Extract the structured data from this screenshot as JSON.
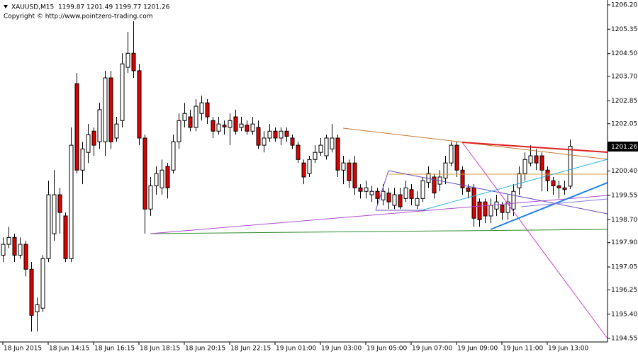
{
  "chart_data": {
    "type": "candlestick",
    "title": "XAUUSD,M15  1199.87 1201.49 1199.77 1201.26",
    "subtitle": "Copyright © http://www.pointzero-trading.com",
    "current_price": 1201.26,
    "up_color": "#ffffff",
    "down_color": "#e00000",
    "wick_color": "#000000",
    "categories": [
      "18 Jun 2015",
      null,
      null,
      null,
      null,
      null,
      null,
      null,
      "18 Jun 14:15",
      null,
      null,
      null,
      null,
      null,
      null,
      null,
      "18 Jun 16:15",
      null,
      null,
      null,
      null,
      null,
      null,
      null,
      "18 Jun 18:15",
      null,
      null,
      null,
      null,
      null,
      null,
      null,
      "18 Jun 20:15",
      null,
      null,
      null,
      null,
      null,
      null,
      null,
      "18 Jun 22:15",
      null,
      null,
      null,
      null,
      null,
      null,
      null,
      "19 Jun 01:00",
      null,
      null,
      null,
      null,
      null,
      null,
      null,
      "19 Jun 03:00",
      null,
      null,
      null,
      null,
      null,
      null,
      null,
      "19 Jun 05:00",
      null,
      null,
      null,
      null,
      null,
      null,
      null,
      "19 Jun 07:00",
      null,
      null,
      null,
      null,
      null,
      null,
      null,
      "19 Jun 09:00",
      null,
      null,
      null,
      null,
      null,
      null,
      null,
      "19 Jun 11:00",
      null,
      null,
      null,
      null,
      null,
      null,
      null,
      "19 Jun 13:00",
      null,
      null,
      null,
      null
    ],
    "open": [
      1197.46,
      1197.84,
      1198.08,
      1197.46,
      1197.84,
      1196.97,
      1195.48,
      1195.61,
      1197.34,
      1198.21,
      1199.57,
      1198.83,
      1197.34,
      1203.45,
      1200.43,
      1201.05,
      1201.79,
      1201.42,
      1201.42,
      1203.65,
      1201.55,
      1202.16,
      1204.02,
      1204.51,
      1203.9,
      1201.55,
      1199.07,
      1199.88,
      1199.81,
      1200.56,
      1200.43,
      1201.42,
      1202.16,
      1202.29,
      1201.92,
      1202.41,
      1202.78,
      1202.16,
      1201.79,
      1202.0,
      1201.92,
      1202.29,
      1201.92,
      1202.0,
      1201.79,
      1201.92,
      1201.3,
      1201.55,
      1201.79,
      1201.55,
      1201.79,
      1201.55,
      1201.3,
      1200.68,
      1200.31,
      1200.8,
      1201.05,
      1200.93,
      1201.17,
      1201.55,
      1200.43,
      1200.68,
      1200.68,
      1199.81,
      1199.69,
      1199.57,
      1199.69,
      1199.39,
      1199.63,
      1199.2,
      1199.57,
      1199.44,
      1199.75,
      1199.2,
      1199.44,
      1200.0,
      1200.19,
      1199.94,
      1200.15,
      1200.68,
      1201.3,
      1200.43,
      1199.81,
      1199.81,
      1199.32,
      1199.32,
      1198.83,
      1199.07,
      1199.2,
      1198.95,
      1199.07,
      1199.81,
      1200.31,
      1200.68,
      1200.93,
      1200.93,
      1200.43,
      1200.06,
      1199.88,
      1199.81,
      1199.87
    ],
    "high": [
      1198.08,
      1198.45,
      1198.21,
      1198.08,
      1197.96,
      1197.22,
      1195.98,
      1197.46,
      1200.06,
      1200.43,
      1199.81,
      1198.95,
      1201.92,
      1203.82,
      1201.42,
      1202.04,
      1201.92,
      1202.78,
      1203.9,
      1203.9,
      1202.29,
      1204.51,
      1205.26,
      1205.63,
      1204.14,
      1201.67,
      1200.19,
      1200.56,
      1200.8,
      1200.68,
      1201.67,
      1202.41,
      1202.78,
      1202.54,
      1202.91,
      1203.03,
      1202.91,
      1202.29,
      1202.29,
      1202.16,
      1202.41,
      1202.54,
      1202.29,
      1202.16,
      1202.29,
      1202.16,
      1201.79,
      1202.04,
      1201.92,
      1201.92,
      1201.92,
      1201.67,
      1201.42,
      1200.8,
      1200.93,
      1201.3,
      1201.55,
      1201.67,
      1202.04,
      1201.67,
      1200.93,
      1200.8,
      1200.93,
      1199.94,
      1200.06,
      1199.88,
      1199.81,
      1199.94,
      1199.81,
      1199.81,
      1199.81,
      1200.06,
      1199.94,
      1199.69,
      1200.19,
      1200.56,
      1200.31,
      1200.43,
      1200.93,
      1201.42,
      1201.42,
      1200.56,
      1199.94,
      1199.94,
      1199.44,
      1199.44,
      1199.44,
      1199.57,
      1199.32,
      1199.57,
      1199.94,
      1200.56,
      1201.05,
      1201.3,
      1201.17,
      1201.05,
      1200.56,
      1200.19,
      1200.06,
      1200.06,
      1201.49
    ],
    "low": [
      1197.22,
      1197.71,
      1197.22,
      1197.34,
      1196.72,
      1194.79,
      1194.79,
      1195.48,
      1197.22,
      1197.96,
      1198.21,
      1197.22,
      1197.22,
      1200.31,
      1199.94,
      1200.68,
      1200.93,
      1201.17,
      1200.93,
      1201.17,
      1201.42,
      1201.92,
      1203.82,
      1203.65,
      1201.3,
      1198.21,
      1198.83,
      1199.57,
      1199.57,
      1199.44,
      1200.31,
      1201.17,
      1201.92,
      1201.79,
      1201.79,
      1202.16,
      1202.04,
      1201.55,
      1201.67,
      1201.67,
      1201.3,
      1201.67,
      1201.79,
      1201.67,
      1201.67,
      1201.17,
      1201.05,
      1201.42,
      1201.42,
      1201.3,
      1201.42,
      1201.17,
      1200.68,
      1199.94,
      1200.19,
      1200.68,
      1200.93,
      1200.8,
      1201.05,
      1200.19,
      1199.94,
      1199.81,
      1199.57,
      1199.44,
      1199.44,
      1199.32,
      1199.2,
      1199.2,
      1199.07,
      1199.07,
      1199.07,
      1199.32,
      1199.2,
      1199.07,
      1199.32,
      1199.81,
      1199.44,
      1199.69,
      1199.94,
      1200.56,
      1200.19,
      1199.57,
      1199.44,
      1198.45,
      1198.45,
      1198.58,
      1198.58,
      1198.83,
      1198.7,
      1198.7,
      1198.83,
      1199.57,
      1200.06,
      1200.56,
      1200.43,
      1199.69,
      1199.69,
      1199.57,
      1199.44,
      1199.57,
      1199.77
    ],
    "close": [
      1197.84,
      1198.08,
      1197.46,
      1197.84,
      1196.97,
      1195.36,
      1195.73,
      1197.34,
      1199.57,
      1199.57,
      1198.95,
      1197.34,
      1201.3,
      1200.43,
      1201.17,
      1201.67,
      1201.3,
      1202.54,
      1203.65,
      1201.42,
      1202.04,
      1204.14,
      1204.51,
      1203.9,
      1201.55,
      1199.07,
      1199.88,
      1200.31,
      1200.43,
      1199.81,
      1201.42,
      1202.16,
      1202.41,
      1201.92,
      1202.66,
      1202.78,
      1202.29,
      1201.79,
      1202.04,
      1201.94,
      1202.16,
      1201.79,
      1202.04,
      1201.79,
      1202.04,
      1201.3,
      1201.55,
      1201.79,
      1201.55,
      1201.79,
      1201.61,
      1201.3,
      1200.8,
      1200.19,
      1200.8,
      1201.05,
      1201.3,
      1201.55,
      1201.55,
      1200.43,
      1200.68,
      1200.06,
      1199.81,
      1199.69,
      1199.81,
      1199.69,
      1199.44,
      1199.69,
      1199.32,
      1199.57,
      1199.15,
      1199.81,
      1199.44,
      1199.44,
      1200.06,
      1200.31,
      1199.63,
      1200.19,
      1200.68,
      1201.3,
      1200.43,
      1199.81,
      1199.69,
      1198.75,
      1198.7,
      1198.83,
      1199.2,
      1199.32,
      1198.95,
      1199.32,
      1199.69,
      1200.31,
      1200.8,
      1200.93,
      1200.68,
      1200.43,
      1200.06,
      1199.88,
      1199.81,
      1199.75,
      1201.26
    ],
    "ylim": [
      1194.43,
      1206.37
    ],
    "yticks": [
      {
        "value": 1206.2,
        "label": "1206.20"
      },
      1205.35,
      {
        "value": 1204.5,
        "label": "1204.50"
      },
      {
        "value": 1203.7,
        "label": "1203.70"
      },
      1202.85,
      1202.05,
      {
        "value": 1200.4,
        "label": "1200.40"
      },
      1199.55,
      {
        "value": 1198.7,
        "label": "1198.70"
      },
      {
        "value": 1197.9,
        "label": "1197.90"
      },
      1197.05,
      1196.25,
      {
        "value": 1195.4,
        "label": "1195.40"
      },
      1194.55
    ]
  }
}
